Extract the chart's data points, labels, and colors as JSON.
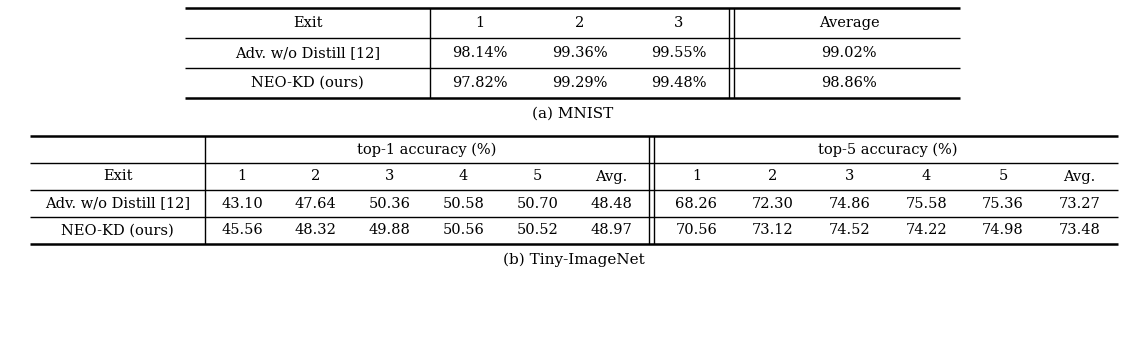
{
  "table_a": {
    "caption": "(a) MNIST",
    "headers": [
      "Exit",
      "1",
      "2",
      "3",
      "Average"
    ],
    "rows": [
      [
        "Adv. w/o Distill [12]",
        "98.14%",
        "99.36%",
        "99.55%",
        "99.02%"
      ],
      [
        "NEO-KD (ours)",
        "97.82%",
        "99.29%",
        "99.48%",
        "98.86%"
      ]
    ]
  },
  "table_b": {
    "caption": "(b) Tiny-ImageNet",
    "group_headers": [
      "top-1 accuracy (%)",
      "top-5 accuracy (%)"
    ],
    "headers": [
      "Exit",
      "1",
      "2",
      "3",
      "4",
      "5",
      "Avg.",
      "1",
      "2",
      "3",
      "4",
      "5",
      "Avg."
    ],
    "rows": [
      [
        "Adv. w/o Distill [12]",
        "43.10",
        "47.64",
        "50.36",
        "50.58",
        "50.70",
        "48.48",
        "68.26",
        "72.30",
        "74.86",
        "75.58",
        "75.36",
        "73.27"
      ],
      [
        "NEO-KD (ours)",
        "45.56",
        "48.32",
        "49.88",
        "50.56",
        "50.52",
        "48.97",
        "70.56",
        "73.12",
        "74.52",
        "74.22",
        "74.98",
        "73.48"
      ]
    ]
  },
  "bg_color": "#ffffff",
  "text_color": "#000000",
  "line_color": "#000000",
  "font_size_header": 10.5,
  "font_size_data": 10.5,
  "font_size_caption": 11
}
